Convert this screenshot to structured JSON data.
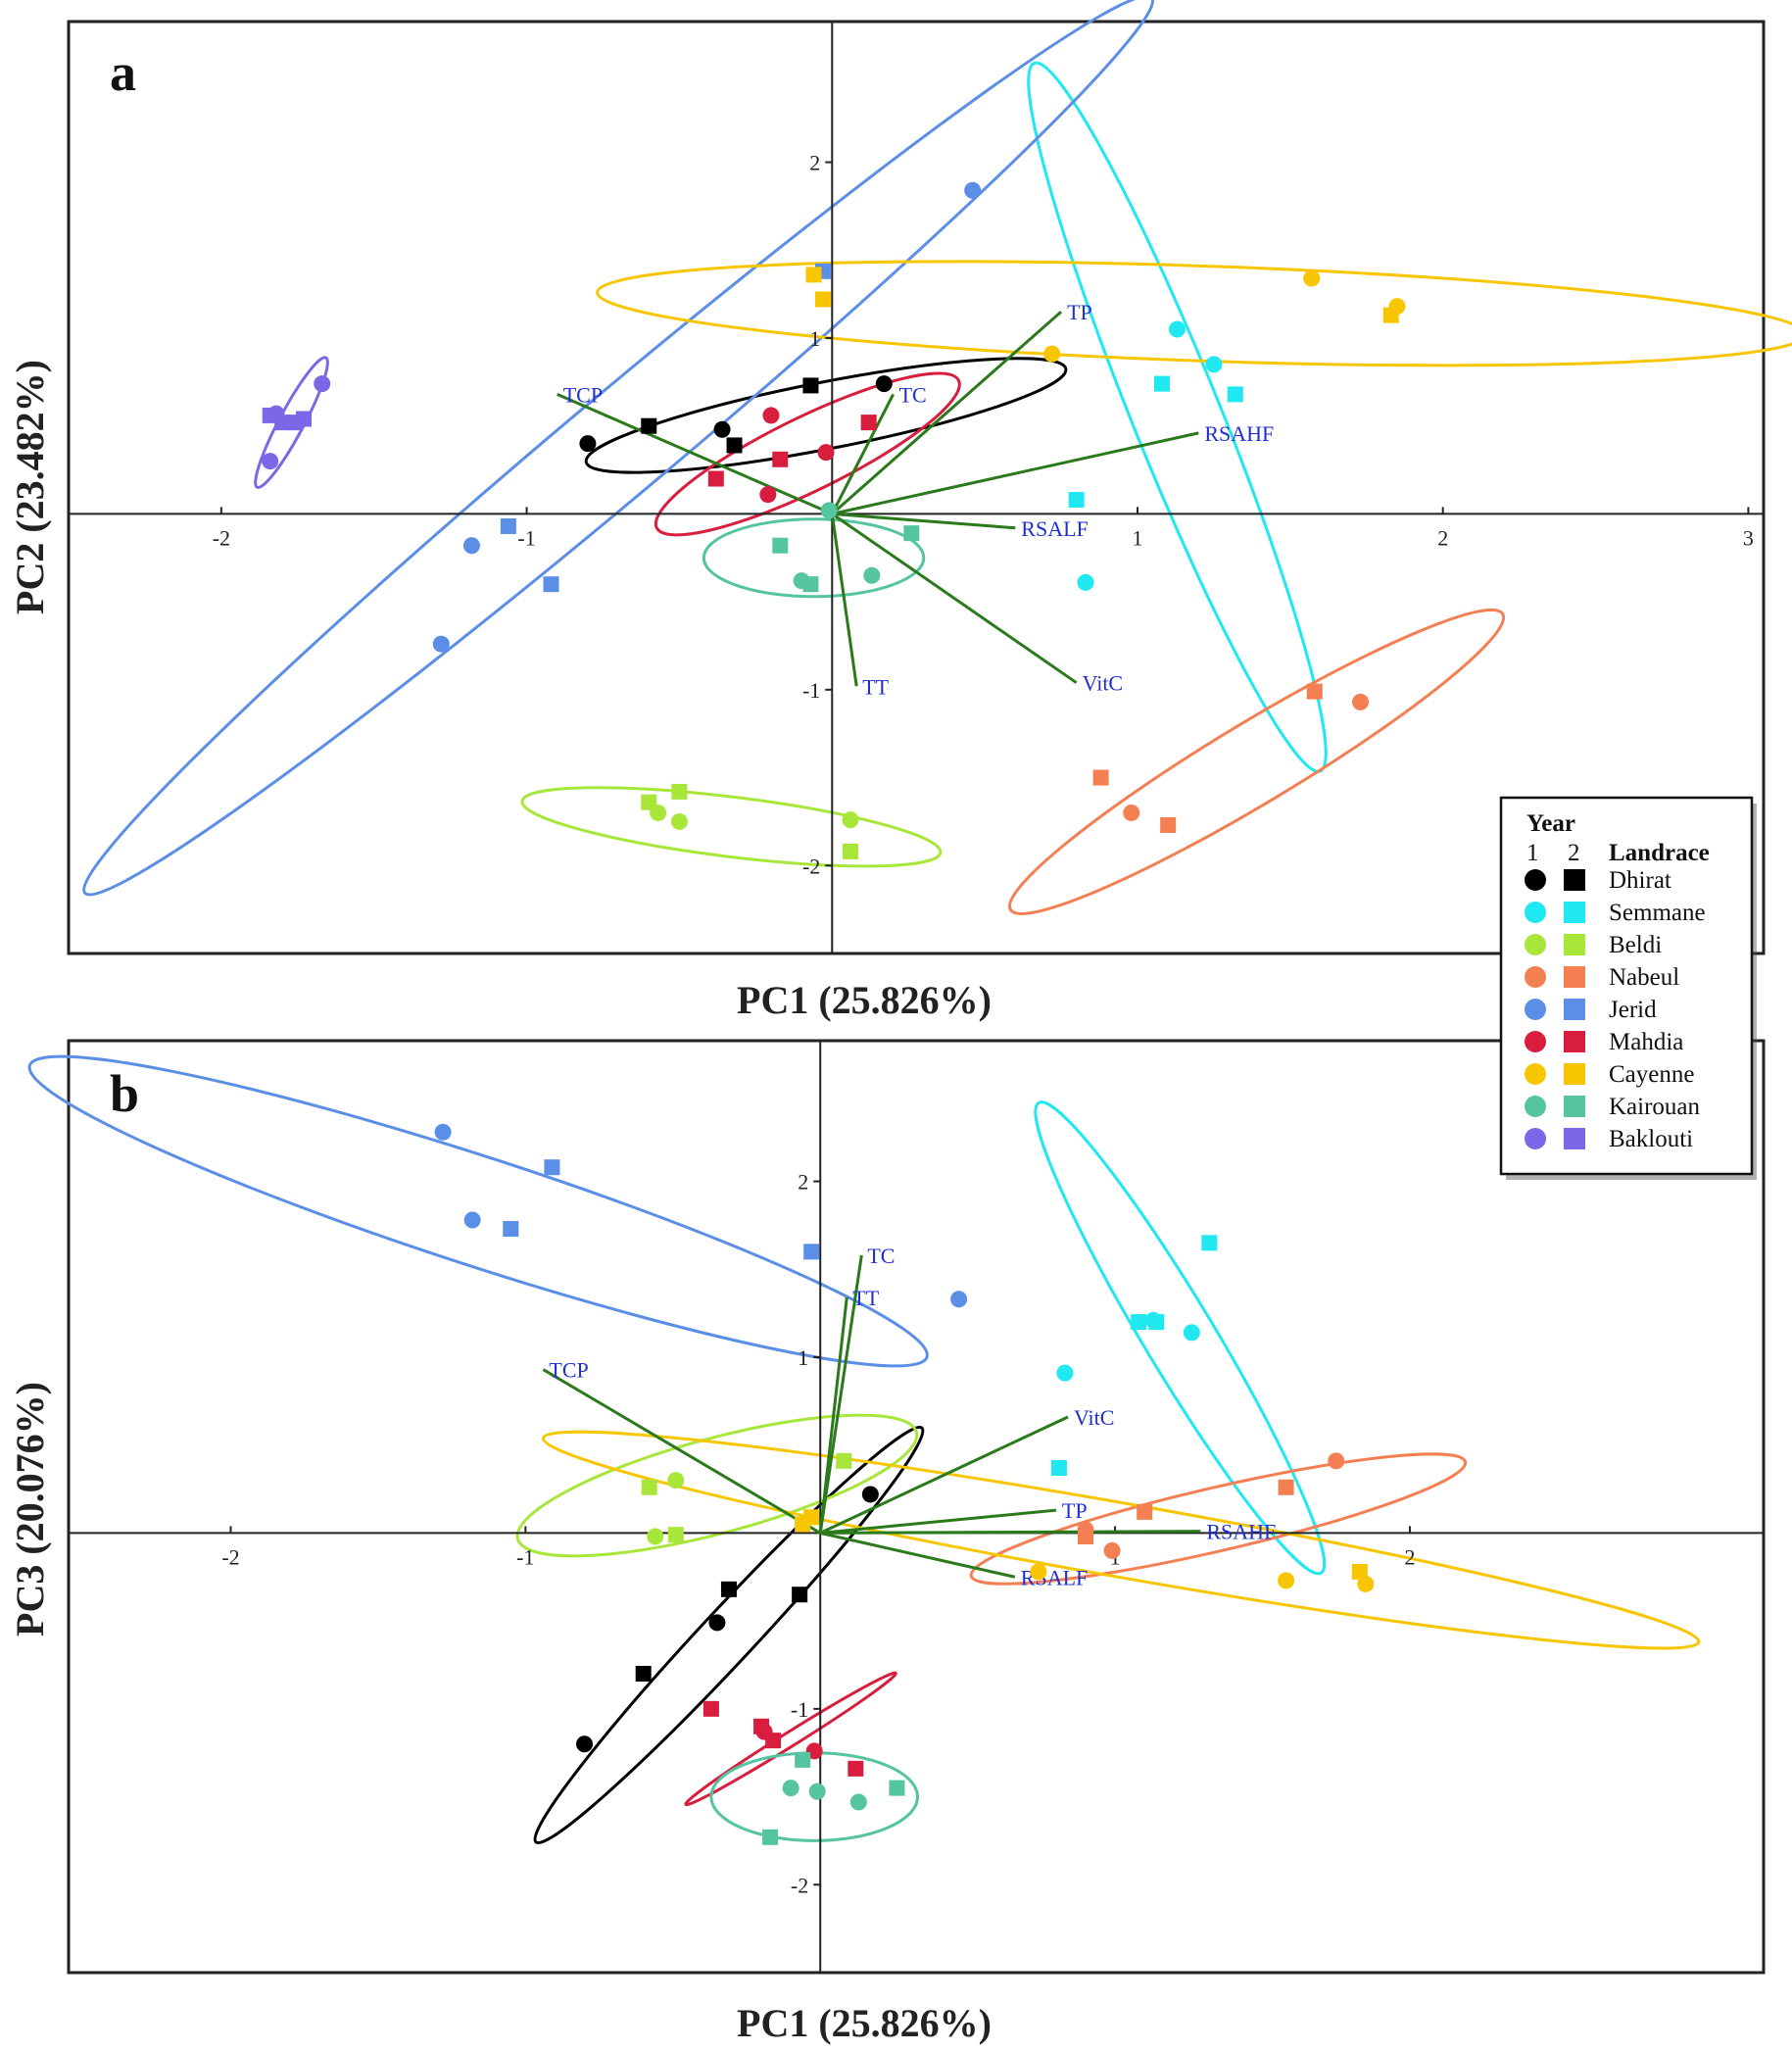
{
  "legend": {
    "year_label": "Year",
    "year1": "1",
    "year2": "2",
    "landrace_label": "Landrace",
    "entries": [
      {
        "name": "Dhirat",
        "color": "#000000"
      },
      {
        "name": "Semmane",
        "color": "#1fe8f0"
      },
      {
        "name": "Beldi",
        "color": "#a8e63a"
      },
      {
        "name": "Nabeul",
        "color": "#f47f52"
      },
      {
        "name": "Jerid",
        "color": "#5b8ee6"
      },
      {
        "name": "Mahdia",
        "color": "#d81d3f"
      },
      {
        "name": "Cayenne",
        "color": "#f7c600"
      },
      {
        "name": "Kairouan",
        "color": "#55c4a0"
      },
      {
        "name": "Baklouti",
        "color": "#7b68e8"
      }
    ]
  },
  "chart_data": [
    {
      "panel": "a",
      "type": "scatter",
      "xlabel": "PC1 (25.826%)",
      "ylabel": "PC2 (23.482%)",
      "xlim": [
        -2.5,
        3.05
      ],
      "ylim": [
        -2.5,
        2.8
      ],
      "xticks": [
        -2,
        -1,
        1,
        2,
        3
      ],
      "yticks": [
        -2,
        -1,
        1,
        2
      ],
      "points": [
        {
          "landrace": "Dhirat",
          "year": 1,
          "x": -0.8,
          "y": 0.4
        },
        {
          "landrace": "Dhirat",
          "year": 2,
          "x": -0.6,
          "y": 0.5
        },
        {
          "landrace": "Dhirat",
          "year": 1,
          "x": -0.36,
          "y": 0.48
        },
        {
          "landrace": "Dhirat",
          "year": 2,
          "x": -0.32,
          "y": 0.39
        },
        {
          "landrace": "Dhirat",
          "year": 2,
          "x": -0.07,
          "y": 0.73
        },
        {
          "landrace": "Dhirat",
          "year": 1,
          "x": 0.17,
          "y": 0.74
        },
        {
          "landrace": "Semmane",
          "year": 1,
          "x": 1.13,
          "y": 1.05
        },
        {
          "landrace": "Semmane",
          "year": 1,
          "x": 1.25,
          "y": 0.85
        },
        {
          "landrace": "Semmane",
          "year": 2,
          "x": 1.08,
          "y": 0.74
        },
        {
          "landrace": "Semmane",
          "year": 2,
          "x": 1.32,
          "y": 0.68
        },
        {
          "landrace": "Semmane",
          "year": 2,
          "x": 0.8,
          "y": 0.08
        },
        {
          "landrace": "Semmane",
          "year": 1,
          "x": 0.83,
          "y": -0.39
        },
        {
          "landrace": "Beldi",
          "year": 2,
          "x": -0.6,
          "y": -1.64
        },
        {
          "landrace": "Beldi",
          "year": 1,
          "x": -0.57,
          "y": -1.7
        },
        {
          "landrace": "Beldi",
          "year": 2,
          "x": -0.5,
          "y": -1.58
        },
        {
          "landrace": "Beldi",
          "year": 1,
          "x": -0.5,
          "y": -1.75
        },
        {
          "landrace": "Beldi",
          "year": 1,
          "x": 0.06,
          "y": -1.74
        },
        {
          "landrace": "Beldi",
          "year": 2,
          "x": 0.06,
          "y": -1.92
        },
        {
          "landrace": "Nabeul",
          "year": 2,
          "x": 1.58,
          "y": -1.01
        },
        {
          "landrace": "Nabeul",
          "year": 1,
          "x": 1.73,
          "y": -1.07
        },
        {
          "landrace": "Nabeul",
          "year": 2,
          "x": 0.88,
          "y": -1.5
        },
        {
          "landrace": "Nabeul",
          "year": 1,
          "x": 0.98,
          "y": -1.7
        },
        {
          "landrace": "Nabeul",
          "year": 2,
          "x": 1.1,
          "y": -1.77
        },
        {
          "landrace": "Jerid",
          "year": 1,
          "x": 0.46,
          "y": 1.84
        },
        {
          "landrace": "Jerid",
          "year": 2,
          "x": -0.03,
          "y": 1.38
        },
        {
          "landrace": "Jerid",
          "year": 2,
          "x": -1.06,
          "y": -0.07
        },
        {
          "landrace": "Jerid",
          "year": 1,
          "x": -1.18,
          "y": -0.18
        },
        {
          "landrace": "Jerid",
          "year": 2,
          "x": -0.92,
          "y": -0.4
        },
        {
          "landrace": "Jerid",
          "year": 1,
          "x": -1.28,
          "y": -0.74
        },
        {
          "landrace": "Mahdia",
          "year": 1,
          "x": -0.2,
          "y": 0.56
        },
        {
          "landrace": "Mahdia",
          "year": 2,
          "x": 0.12,
          "y": 0.52
        },
        {
          "landrace": "Mahdia",
          "year": 1,
          "x": -0.02,
          "y": 0.35
        },
        {
          "landrace": "Mahdia",
          "year": 2,
          "x": -0.17,
          "y": 0.31
        },
        {
          "landrace": "Mahdia",
          "year": 2,
          "x": -0.38,
          "y": 0.2
        },
        {
          "landrace": "Mahdia",
          "year": 1,
          "x": -0.21,
          "y": 0.11
        },
        {
          "landrace": "Cayenne",
          "year": 2,
          "x": -0.06,
          "y": 1.36
        },
        {
          "landrace": "Cayenne",
          "year": 2,
          "x": -0.03,
          "y": 1.22
        },
        {
          "landrace": "Cayenne",
          "year": 1,
          "x": 1.57,
          "y": 1.34
        },
        {
          "landrace": "Cayenne",
          "year": 1,
          "x": 1.85,
          "y": 1.18
        },
        {
          "landrace": "Cayenne",
          "year": 2,
          "x": 1.83,
          "y": 1.13
        },
        {
          "landrace": "Cayenne",
          "year": 1,
          "x": 0.72,
          "y": 0.91
        },
        {
          "landrace": "Kairouan",
          "year": 1,
          "x": -0.01,
          "y": 0.02
        },
        {
          "landrace": "Kairouan",
          "year": 2,
          "x": -0.17,
          "y": -0.18
        },
        {
          "landrace": "Kairouan",
          "year": 2,
          "x": 0.26,
          "y": -0.11
        },
        {
          "landrace": "Kairouan",
          "year": 1,
          "x": -0.1,
          "y": -0.38
        },
        {
          "landrace": "Kairouan",
          "year": 2,
          "x": -0.07,
          "y": -0.4
        },
        {
          "landrace": "Kairouan",
          "year": 1,
          "x": 0.13,
          "y": -0.35
        },
        {
          "landrace": "Baklouti",
          "year": 2,
          "x": -1.84,
          "y": 0.56
        },
        {
          "landrace": "Baklouti",
          "year": 2,
          "x": -1.8,
          "y": 0.52
        },
        {
          "landrace": "Baklouti",
          "year": 2,
          "x": -1.76,
          "y": 0.52
        },
        {
          "landrace": "Baklouti",
          "year": 2,
          "x": -1.73,
          "y": 0.54
        },
        {
          "landrace": "Baklouti",
          "year": 1,
          "x": -1.82,
          "y": 0.57
        },
        {
          "landrace": "Baklouti",
          "year": 1,
          "x": -1.67,
          "y": 0.74
        },
        {
          "landrace": "Baklouti",
          "year": 1,
          "x": -1.84,
          "y": 0.3
        }
      ],
      "ellipses": [
        {
          "landrace": "Dhirat",
          "cx": -0.02,
          "cy": 0.56,
          "rx": 0.8,
          "ry": 0.19,
          "angle": 11
        },
        {
          "landrace": "Semmane",
          "cx": 1.13,
          "cy": 0.55,
          "rx": 1.25,
          "ry": 0.25,
          "angle": -68
        },
        {
          "landrace": "Beldi",
          "cx": -0.33,
          "cy": -1.78,
          "rx": 0.69,
          "ry": 0.17,
          "angle": -7
        },
        {
          "landrace": "Nabeul",
          "cx": 1.39,
          "cy": -1.41,
          "rx": 0.94,
          "ry": 0.23,
          "angle": 31
        },
        {
          "landrace": "Jerid",
          "cx": -0.7,
          "cy": 0.39,
          "rx": 2.28,
          "ry": 0.29,
          "angle": 40
        },
        {
          "landrace": "Mahdia",
          "cx": -0.08,
          "cy": 0.34,
          "rx": 0.55,
          "ry": 0.21,
          "angle": 26
        },
        {
          "landrace": "Cayenne",
          "cx": 1.21,
          "cy": 1.14,
          "rx": 1.98,
          "ry": 0.27,
          "angle": -2
        },
        {
          "landrace": "Kairouan",
          "cx": -0.06,
          "cy": -0.25,
          "rx": 0.36,
          "ry": 0.22,
          "angle": 0
        },
        {
          "landrace": "Baklouti",
          "cx": -1.77,
          "cy": 0.52,
          "rx": 0.24,
          "ry": 0.07,
          "angle": 62
        }
      ],
      "loadings": [
        {
          "label": "TP",
          "x": 0.75,
          "y": 1.15
        },
        {
          "label": "TCP",
          "x": -0.9,
          "y": 0.68
        },
        {
          "label": "TC",
          "x": 0.2,
          "y": 0.68
        },
        {
          "label": "RSAHF",
          "x": 1.2,
          "y": 0.46
        },
        {
          "label": "RSALF",
          "x": 0.6,
          "y": -0.08
        },
        {
          "label": "VitC",
          "x": 0.8,
          "y": -0.96
        },
        {
          "label": "TT",
          "x": 0.08,
          "y": -0.98
        }
      ]
    },
    {
      "panel": "b",
      "type": "scatter",
      "xlabel": "PC1 (25.826%)",
      "ylabel": "PC3 (20.076%)",
      "xlim": [
        -2.55,
        3.2
      ],
      "ylim": [
        -2.5,
        2.8
      ],
      "xticks": [
        -2,
        -1,
        1,
        2
      ],
      "yticks": [
        -2,
        -1,
        1,
        2
      ],
      "points": [
        {
          "landrace": "Dhirat",
          "year": 1,
          "x": 0.17,
          "y": 0.22
        },
        {
          "landrace": "Dhirat",
          "year": 2,
          "x": -0.31,
          "y": -0.32
        },
        {
          "landrace": "Dhirat",
          "year": 2,
          "x": -0.07,
          "y": -0.35
        },
        {
          "landrace": "Dhirat",
          "year": 1,
          "x": -0.35,
          "y": -0.51
        },
        {
          "landrace": "Dhirat",
          "year": 2,
          "x": -0.6,
          "y": -0.8
        },
        {
          "landrace": "Dhirat",
          "year": 1,
          "x": -0.8,
          "y": -1.2
        },
        {
          "landrace": "Semmane",
          "year": 2,
          "x": 1.32,
          "y": 1.65
        },
        {
          "landrace": "Semmane",
          "year": 2,
          "x": 1.08,
          "y": 1.2
        },
        {
          "landrace": "Semmane",
          "year": 2,
          "x": 1.14,
          "y": 1.2
        },
        {
          "landrace": "Semmane",
          "year": 1,
          "x": 1.13,
          "y": 1.21
        },
        {
          "landrace": "Semmane",
          "year": 1,
          "x": 1.26,
          "y": 1.14
        },
        {
          "landrace": "Semmane",
          "year": 1,
          "x": 0.83,
          "y": 0.91
        },
        {
          "landrace": "Semmane",
          "year": 2,
          "x": 0.81,
          "y": 0.37
        },
        {
          "landrace": "Beldi",
          "year": 2,
          "x": 0.08,
          "y": 0.41
        },
        {
          "landrace": "Beldi",
          "year": 2,
          "x": -0.58,
          "y": 0.26
        },
        {
          "landrace": "Beldi",
          "year": 1,
          "x": -0.49,
          "y": 0.3
        },
        {
          "landrace": "Beldi",
          "year": 1,
          "x": -0.56,
          "y": -0.02
        },
        {
          "landrace": "Beldi",
          "year": 2,
          "x": -0.49,
          "y": -0.01
        },
        {
          "landrace": "Nabeul",
          "year": 1,
          "x": 1.75,
          "y": 0.41
        },
        {
          "landrace": "Nabeul",
          "year": 2,
          "x": 1.58,
          "y": 0.26
        },
        {
          "landrace": "Nabeul",
          "year": 2,
          "x": 1.1,
          "y": 0.12
        },
        {
          "landrace": "Nabeul",
          "year": 1,
          "x": 0.9,
          "y": 0.02
        },
        {
          "landrace": "Nabeul",
          "year": 2,
          "x": 0.9,
          "y": -0.02
        },
        {
          "landrace": "Nabeul",
          "year": 1,
          "x": 0.99,
          "y": -0.1
        },
        {
          "landrace": "Jerid",
          "year": 1,
          "x": -1.28,
          "y": 2.28
        },
        {
          "landrace": "Jerid",
          "year": 2,
          "x": -0.91,
          "y": 2.08
        },
        {
          "landrace": "Jerid",
          "year": 1,
          "x": -1.18,
          "y": 1.78
        },
        {
          "landrace": "Jerid",
          "year": 2,
          "x": -1.05,
          "y": 1.73
        },
        {
          "landrace": "Jerid",
          "year": 2,
          "x": -0.03,
          "y": 1.6
        },
        {
          "landrace": "Jerid",
          "year": 1,
          "x": 0.47,
          "y": 1.33
        },
        {
          "landrace": "Mahdia",
          "year": 2,
          "x": -0.37,
          "y": -1.0
        },
        {
          "landrace": "Mahdia",
          "year": 2,
          "x": -0.2,
          "y": -1.1
        },
        {
          "landrace": "Mahdia",
          "year": 1,
          "x": -0.19,
          "y": -1.13
        },
        {
          "landrace": "Mahdia",
          "year": 2,
          "x": -0.16,
          "y": -1.18
        },
        {
          "landrace": "Mahdia",
          "year": 1,
          "x": -0.02,
          "y": -1.24
        },
        {
          "landrace": "Mahdia",
          "year": 2,
          "x": 0.12,
          "y": -1.34
        },
        {
          "landrace": "Cayenne",
          "year": 2,
          "x": -0.03,
          "y": 0.09
        },
        {
          "landrace": "Cayenne",
          "year": 2,
          "x": -0.06,
          "y": 0.05
        },
        {
          "landrace": "Cayenne",
          "year": 1,
          "x": 0.74,
          "y": -0.22
        },
        {
          "landrace": "Cayenne",
          "year": 1,
          "x": 1.58,
          "y": -0.27
        },
        {
          "landrace": "Cayenne",
          "year": 2,
          "x": 1.83,
          "y": -0.22
        },
        {
          "landrace": "Cayenne",
          "year": 1,
          "x": 1.85,
          "y": -0.29
        },
        {
          "landrace": "Kairouan",
          "year": 2,
          "x": -0.06,
          "y": -1.29
        },
        {
          "landrace": "Kairouan",
          "year": 1,
          "x": -0.1,
          "y": -1.45
        },
        {
          "landrace": "Kairouan",
          "year": 1,
          "x": -0.01,
          "y": -1.47
        },
        {
          "landrace": "Kairouan",
          "year": 1,
          "x": 0.13,
          "y": -1.53
        },
        {
          "landrace": "Kairouan",
          "year": 2,
          "x": 0.26,
          "y": -1.45
        },
        {
          "landrace": "Kairouan",
          "year": 2,
          "x": -0.17,
          "y": -1.73
        }
      ],
      "ellipses": [
        {
          "landrace": "Dhirat",
          "cx": -0.31,
          "cy": -0.58,
          "rx": 0.96,
          "ry": 0.15,
          "angle": 47
        },
        {
          "landrace": "Semmane",
          "cx": 1.22,
          "cy": 1.11,
          "rx": 0.93,
          "ry": 0.2,
          "angle": -59
        },
        {
          "landrace": "Beldi",
          "cx": -0.35,
          "cy": 0.27,
          "rx": 0.7,
          "ry": 0.27,
          "angle": 15
        },
        {
          "landrace": "Nabeul",
          "cx": 1.35,
          "cy": 0.08,
          "rx": 0.86,
          "ry": 0.18,
          "angle": 13
        },
        {
          "landrace": "Jerid",
          "cx": -1.16,
          "cy": 1.83,
          "rx": 1.6,
          "ry": 0.31,
          "angle": -18
        },
        {
          "landrace": "Mahdia",
          "cx": -0.1,
          "cy": -1.17,
          "rx": 0.42,
          "ry": 0.04,
          "angle": 32
        },
        {
          "landrace": "Cayenne",
          "cx": 1.02,
          "cy": -0.04,
          "rx": 1.99,
          "ry": 0.21,
          "angle": -10
        },
        {
          "landrace": "Kairouan",
          "cx": -0.02,
          "cy": -1.5,
          "rx": 0.35,
          "ry": 0.25,
          "angle": 0
        }
      ],
      "loadings": [
        {
          "label": "TC",
          "x": 0.14,
          "y": 1.58
        },
        {
          "label": "TT",
          "x": 0.09,
          "y": 1.34
        },
        {
          "label": "TCP",
          "x": -0.94,
          "y": 0.93
        },
        {
          "label": "VitC",
          "x": 0.84,
          "y": 0.66
        },
        {
          "label": "TP",
          "x": 0.8,
          "y": 0.13
        },
        {
          "label": "RSAHF",
          "x": 1.29,
          "y": 0.01
        },
        {
          "label": "RSALF",
          "x": 0.66,
          "y": -0.25
        }
      ]
    }
  ]
}
